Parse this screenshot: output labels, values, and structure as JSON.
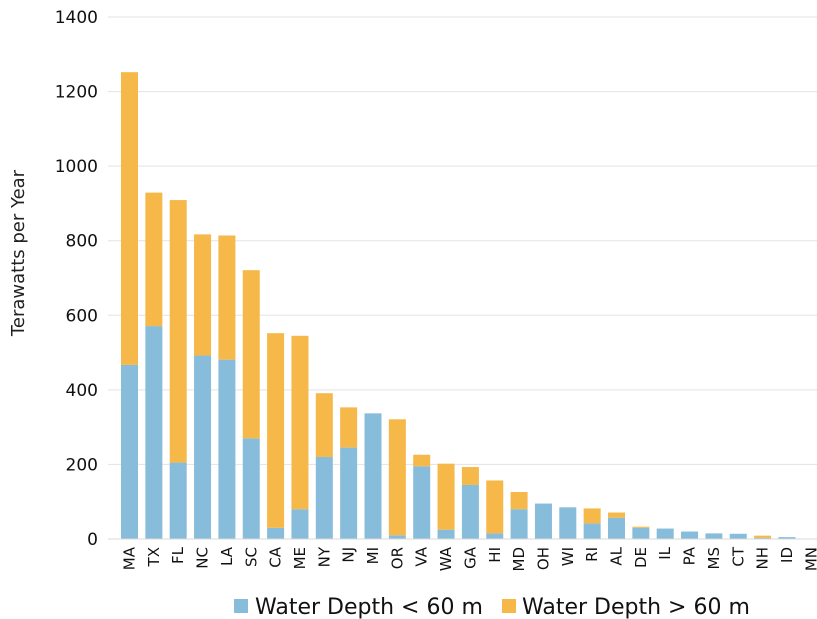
{
  "chart_data": {
    "type": "bar",
    "stacked": true,
    "ylabel": "Terawatts per Year",
    "xlabel": "",
    "ylim": [
      0,
      1400
    ],
    "yticks": [
      0,
      200,
      400,
      600,
      800,
      1000,
      1200,
      1400
    ],
    "grid": true,
    "legend_position": "bottom",
    "categories": [
      "MA",
      "TX",
      "FL",
      "NC",
      "LA",
      "SC",
      "CA",
      "ME",
      "NY",
      "NJ",
      "MI",
      "OR",
      "VA",
      "WA",
      "GA",
      "HI",
      "MD",
      "OH",
      "WI",
      "RI",
      "AL",
      "DE",
      "IL",
      "PA",
      "MS",
      "CT",
      "NH",
      "ID",
      "MN"
    ],
    "series": [
      {
        "name": "Water Depth < 60 m",
        "color": "#87BCDB",
        "values": [
          467,
          571,
          205,
          492,
          481,
          270,
          30,
          80,
          220,
          245,
          337,
          10,
          195,
          25,
          145,
          15,
          80,
          95,
          85,
          42,
          57,
          30,
          28,
          20,
          15,
          14,
          3,
          5,
          0
        ]
      },
      {
        "name": "Water Depth > 60 m",
        "color": "#F5B849",
        "values": [
          785,
          358,
          704,
          325,
          333,
          451,
          522,
          465,
          171,
          108,
          0,
          311,
          31,
          177,
          48,
          142,
          46,
          0,
          0,
          40,
          14,
          3,
          0,
          0,
          0,
          0,
          6,
          0,
          0
        ]
      }
    ]
  }
}
